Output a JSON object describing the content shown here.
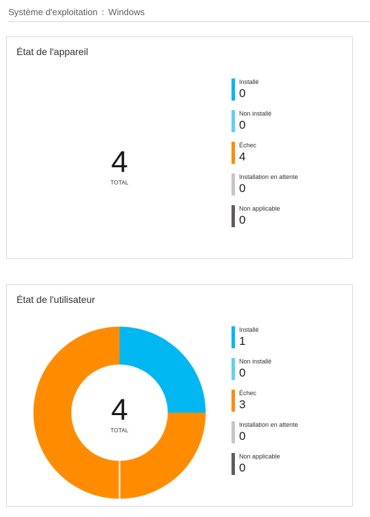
{
  "header": {
    "label": "Système d'exploitation",
    "separator": ":",
    "value": "Windows"
  },
  "colors": {
    "installed": "#00b7f1",
    "not_installed": "#5fd0ef",
    "failed": "#ff8c00",
    "pending": "#c8c6c4",
    "not_applicable": "#605e5c"
  },
  "device_state": {
    "title": "État de l'appareil",
    "total": "4",
    "total_label": "TOTAL",
    "legend": [
      {
        "label": "Installé",
        "value": "0",
        "color": "#00b7f1"
      },
      {
        "label": "Non installé",
        "value": "0",
        "color": "#5fd0ef"
      },
      {
        "label": "Échec",
        "value": "4",
        "color": "#ff8c00"
      },
      {
        "label": "Installation en attente",
        "value": "0",
        "color": "#c8c6c4"
      },
      {
        "label": "Non applicable",
        "value": "0",
        "color": "#605e5c"
      }
    ]
  },
  "user_state": {
    "title": "État de l'utilisateur",
    "total": "4",
    "total_label": "TOTAL",
    "legend": [
      {
        "label": "Installé",
        "value": "1",
        "color": "#00b7f1"
      },
      {
        "label": "Non installé",
        "value": "0",
        "color": "#5fd0ef"
      },
      {
        "label": "Échec",
        "value": "3",
        "color": "#ff8c00"
      },
      {
        "label": "Installation en attente",
        "value": "0",
        "color": "#c8c6c4"
      },
      {
        "label": "Non applicable",
        "value": "0",
        "color": "#605e5c"
      }
    ]
  }
}
